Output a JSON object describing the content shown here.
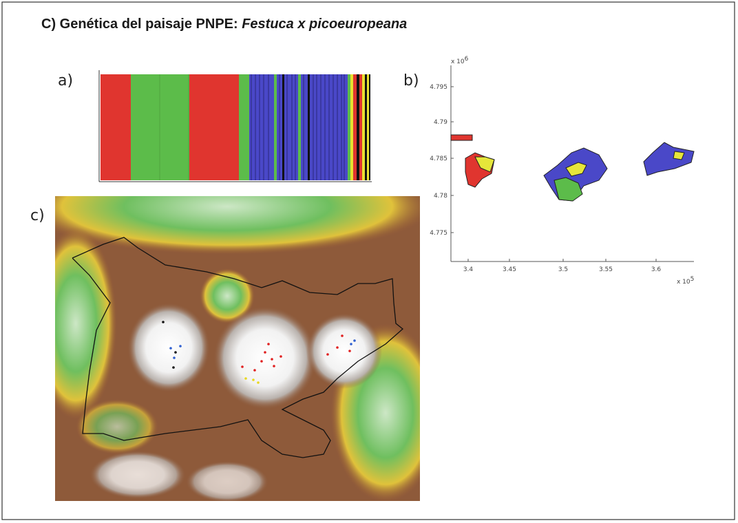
{
  "header": {
    "title_prefix": "C) Genética del paisaje PNPE: ",
    "title_species": "Festuca x picoeuropeana"
  },
  "panels": [
    {
      "label": "a)"
    },
    {
      "label": "b)",
      "y_ticks": [
        "4.795",
        "4.79",
        "4.785",
        "4.78",
        "4.775"
      ],
      "x_ticks": [
        "3.4",
        "3.45",
        "3.5",
        "3.55",
        "3.6"
      ],
      "y_multiplier": "x 10",
      "y_exponent": "6",
      "x_multiplier": "x 10",
      "x_exponent": "5"
    },
    {
      "label": "c)"
    }
  ]
}
